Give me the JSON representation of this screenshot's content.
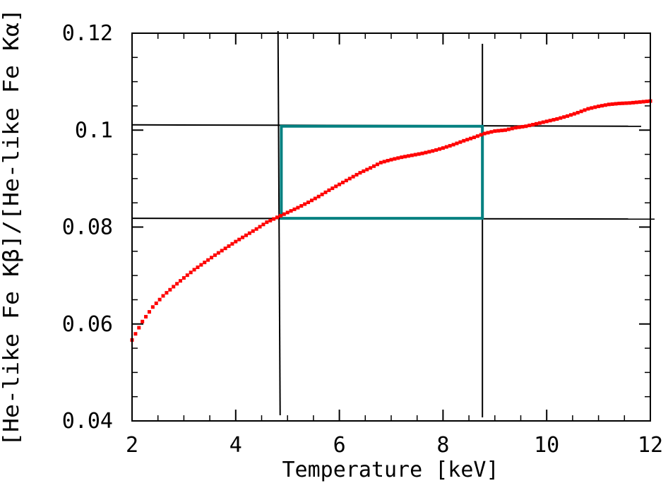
{
  "chart_data": {
    "type": "scatter",
    "xlabel": "Temperature [keV]",
    "ylabel": "[He-like Fe Kβ]/[He-like Fe Kα]",
    "xlim": [
      2,
      12
    ],
    "ylim": [
      0.04,
      0.12
    ],
    "x_ticks": [
      2,
      4,
      6,
      8,
      10,
      12
    ],
    "x_tick_labels": [
      "2",
      "4",
      "6",
      "8",
      "10",
      "12"
    ],
    "y_ticks": [
      0.04,
      0.06,
      0.08,
      0.1,
      0.12
    ],
    "y_tick_labels": [
      "0.04",
      "0.06",
      "0.08",
      "0.1",
      "0.12"
    ],
    "grid": false,
    "series": [
      {
        "color": "#ff0000",
        "marker": "dot",
        "x": [
          2.0,
          2.2,
          2.4,
          2.6,
          2.8,
          3.0,
          3.2,
          3.4,
          3.6,
          3.8,
          4.0,
          4.2,
          4.4,
          4.6,
          4.8,
          5.0,
          5.2,
          5.4,
          5.6,
          5.8,
          6.0,
          6.2,
          6.4,
          6.6,
          6.8,
          7.0,
          7.2,
          7.4,
          7.6,
          7.8,
          8.0,
          8.2,
          8.4,
          8.6,
          8.8,
          9.0,
          9.2,
          9.4,
          9.6,
          9.8,
          10.0,
          10.2,
          10.4,
          10.6,
          10.8,
          11.0,
          11.2,
          11.4,
          11.6,
          11.8,
          12.0
        ],
        "y": [
          0.0567,
          0.0605,
          0.0635,
          0.0658,
          0.0677,
          0.0695,
          0.0712,
          0.0727,
          0.0742,
          0.0756,
          0.077,
          0.0783,
          0.0796,
          0.081,
          0.082,
          0.083,
          0.084,
          0.0851,
          0.0863,
          0.0876,
          0.0888,
          0.09,
          0.0912,
          0.0922,
          0.0933,
          0.0939,
          0.0944,
          0.0948,
          0.0952,
          0.0957,
          0.0963,
          0.097,
          0.0978,
          0.0985,
          0.0993,
          0.0998,
          0.1,
          0.1005,
          0.1008,
          0.1013,
          0.1018,
          0.1023,
          0.1029,
          0.1036,
          0.1044,
          0.1049,
          0.1053,
          0.1055,
          0.1056,
          0.1058,
          0.106
        ]
      }
    ],
    "reference_lines": {
      "vertical_x": [
        4.83,
        8.76
      ],
      "horizontal_y": [
        0.1008,
        0.0818
      ]
    },
    "highlight_box": {
      "x": [
        4.88,
        8.76
      ],
      "y": [
        0.0818,
        0.1008
      ],
      "color": "#008080"
    }
  }
}
